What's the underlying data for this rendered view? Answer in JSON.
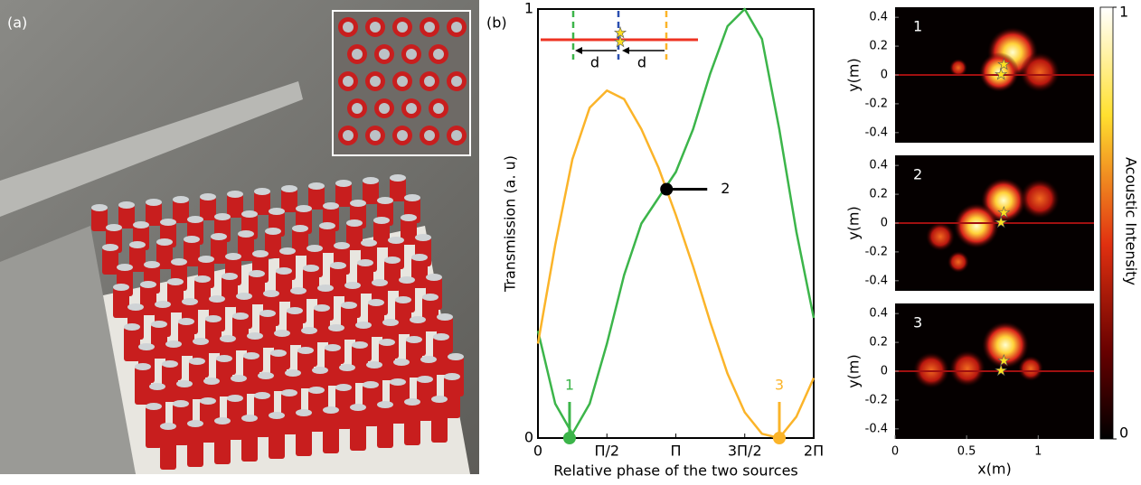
{
  "panels": {
    "a": {
      "label": "(a)"
    },
    "b": {
      "label": "(b)",
      "inset": {
        "labels": [
          "d",
          "d"
        ]
      }
    }
  },
  "chart_data": [
    {
      "type": "line",
      "xlabel": "Relative phase of the two sources",
      "ylabel": "Transmission (a. u)",
      "x": [
        0,
        0.393,
        0.785,
        1.178,
        1.571,
        1.963,
        2.356,
        2.749,
        3.142,
        3.534,
        3.927,
        4.32,
        4.712,
        5.105,
        5.498,
        5.89,
        6.283
      ],
      "series": [
        {
          "color": "#3cb54a",
          "values": [
            0.25,
            0.08,
            0.01,
            0.08,
            0.22,
            0.38,
            0.5,
            0.56,
            0.62,
            0.72,
            0.85,
            0.96,
            1.0,
            0.93,
            0.72,
            0.48,
            0.28
          ]
        },
        {
          "color": "#fbb429",
          "values": [
            0.22,
            0.45,
            0.65,
            0.77,
            0.81,
            0.79,
            0.72,
            0.63,
            0.52,
            0.4,
            0.27,
            0.15,
            0.06,
            0.01,
            0.0,
            0.05,
            0.14
          ]
        }
      ],
      "xlim": [
        0,
        6.283
      ],
      "ylim": [
        0,
        1
      ],
      "xticks": [
        0,
        {
          "value": 1.571,
          "label": "Π/2"
        },
        {
          "value": 3.142,
          "label": "Π"
        },
        {
          "value": 4.712,
          "label": "3Π/2"
        },
        {
          "value": 6.283,
          "label": "2Π"
        }
      ],
      "yticks": [
        0,
        1
      ],
      "annotations": [
        {
          "label": "1",
          "x": 0.72,
          "y": 0,
          "color": "#3cb54a"
        },
        {
          "label": "2",
          "x": 2.93,
          "y": 0.58,
          "color": "#000000"
        },
        {
          "label": "3",
          "x": 5.5,
          "y": 0,
          "color": "#fbb429"
        }
      ]
    },
    {
      "type": "heatmap",
      "label": "1",
      "ylabel": "y(m)",
      "xlim": [
        0,
        1.39
      ],
      "ylim": [
        -0.47,
        0.47
      ],
      "yticks": [
        0.4,
        0.2,
        0,
        -0.2,
        -0.4
      ]
    },
    {
      "type": "heatmap",
      "label": "2",
      "ylabel": "y(m)",
      "xlim": [
        0,
        1.39
      ],
      "ylim": [
        -0.47,
        0.47
      ],
      "yticks": [
        0.4,
        0.2,
        0,
        -0.2,
        -0.4
      ]
    },
    {
      "type": "heatmap",
      "label": "3",
      "ylabel": "y(m)",
      "xlabel": "x(m)",
      "xlim": [
        0,
        1.39
      ],
      "ylim": [
        -0.47,
        0.47
      ],
      "yticks": [
        0.4,
        0.2,
        0,
        -0.2,
        -0.4
      ],
      "xticks": [
        0,
        0.5,
        1
      ]
    }
  ],
  "colorbar": {
    "label": "Acoustic Intensity",
    "lim": [
      0,
      1
    ],
    "ticks": [
      0,
      1
    ]
  }
}
